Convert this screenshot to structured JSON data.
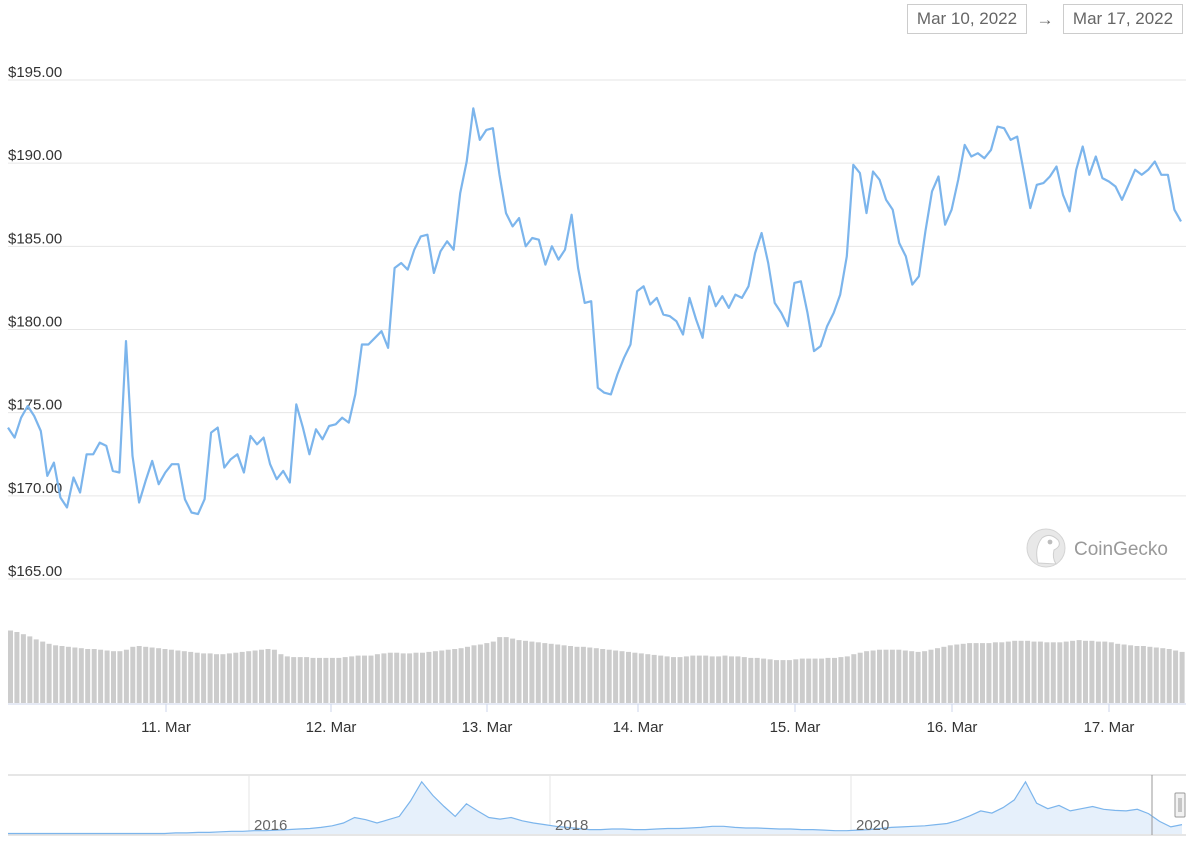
{
  "date_range": {
    "start": "Mar 10, 2022",
    "arrow": "→",
    "end": "Mar 17, 2022"
  },
  "watermark": {
    "text": "CoinGecko",
    "icon": "gecko-logo-icon"
  },
  "colors": {
    "price_line": "#7cb5ec",
    "volume_bar": "#cccccc",
    "navigator_fill": "#e6f0fb",
    "navigator_line": "#7cb5ec"
  },
  "navigator": {
    "labels": [
      "2016",
      "2018",
      "2020"
    ]
  },
  "chart_data": {
    "type": "line",
    "title": "",
    "xlabel": "",
    "ylabel": "",
    "x_ticks": [
      "11. Mar",
      "12. Mar",
      "13. Mar",
      "14. Mar",
      "15. Mar",
      "16. Mar",
      "17. Mar"
    ],
    "y_ticks": [
      "$165.00",
      "$170.00",
      "$175.00",
      "$180.00",
      "$185.00",
      "$190.00",
      "$195.00"
    ],
    "ylim": [
      165,
      195
    ],
    "x_range_days": [
      "2022-03-10T05:00",
      "2022-03-17T11:00"
    ],
    "grid": true,
    "price": [
      174.1,
      173.5,
      174.7,
      175.4,
      174.8,
      173.9,
      171.2,
      172.0,
      169.9,
      169.3,
      171.1,
      170.2,
      172.5,
      172.5,
      173.2,
      173.0,
      171.5,
      171.4,
      179.3,
      172.4,
      169.6,
      170.9,
      172.1,
      170.7,
      171.4,
      171.9,
      171.9,
      169.8,
      169.0,
      168.9,
      169.8,
      173.8,
      174.1,
      171.7,
      172.2,
      172.5,
      171.4,
      173.6,
      173.1,
      173.5,
      171.9,
      171.0,
      171.5,
      170.8,
      175.5,
      174.1,
      172.5,
      174.0,
      173.4,
      174.2,
      174.3,
      174.7,
      174.4,
      176.1,
      179.1,
      179.1,
      179.5,
      179.9,
      178.9,
      183.7,
      184.0,
      183.6,
      184.8,
      185.6,
      185.7,
      183.4,
      184.7,
      185.3,
      184.8,
      188.2,
      190.1,
      193.3,
      191.4,
      192.0,
      192.1,
      189.3,
      187.0,
      186.2,
      186.7,
      185.0,
      185.5,
      185.4,
      183.9,
      185.0,
      184.2,
      184.8,
      186.9,
      183.7,
      181.6,
      181.7,
      176.5,
      176.2,
      176.1,
      177.3,
      178.3,
      179.1,
      182.3,
      182.6,
      181.5,
      181.9,
      180.9,
      180.8,
      180.5,
      179.7,
      181.9,
      180.6,
      179.5,
      182.6,
      181.4,
      182.0,
      181.3,
      182.1,
      181.9,
      182.6,
      184.6,
      185.8,
      184.0,
      181.6,
      181.0,
      180.2,
      182.8,
      182.9,
      181.0,
      178.7,
      179.0,
      180.2,
      181.0,
      182.1,
      184.4,
      189.9,
      189.4,
      187.0,
      189.5,
      189.0,
      187.8,
      187.2,
      185.2,
      184.4,
      182.7,
      183.2,
      185.9,
      188.3,
      189.2,
      186.3,
      187.2,
      189.0,
      191.1,
      190.4,
      190.6,
      190.3,
      190.8,
      192.2,
      192.1,
      191.4,
      191.6,
      189.5,
      187.3,
      188.7,
      188.8,
      189.2,
      189.8,
      188.1,
      187.1,
      189.6,
      191.0,
      189.3,
      190.4,
      189.1,
      188.9,
      188.6,
      187.8,
      188.7,
      189.6,
      189.3,
      189.6,
      190.1,
      189.3,
      189.3,
      187.2,
      186.5
    ],
    "volume_relative": [
      0.98,
      0.96,
      0.93,
      0.9,
      0.86,
      0.83,
      0.8,
      0.78,
      0.77,
      0.76,
      0.75,
      0.74,
      0.73,
      0.73,
      0.72,
      0.71,
      0.7,
      0.7,
      0.72,
      0.76,
      0.77,
      0.76,
      0.75,
      0.74,
      0.73,
      0.72,
      0.71,
      0.7,
      0.69,
      0.68,
      0.67,
      0.67,
      0.66,
      0.66,
      0.67,
      0.68,
      0.69,
      0.7,
      0.71,
      0.72,
      0.73,
      0.72,
      0.66,
      0.63,
      0.62,
      0.62,
      0.62,
      0.61,
      0.61,
      0.61,
      0.61,
      0.61,
      0.62,
      0.63,
      0.64,
      0.64,
      0.64,
      0.66,
      0.67,
      0.68,
      0.68,
      0.67,
      0.67,
      0.68,
      0.68,
      0.69,
      0.7,
      0.71,
      0.72,
      0.73,
      0.74,
      0.76,
      0.78,
      0.79,
      0.81,
      0.83,
      0.89,
      0.89,
      0.87,
      0.85,
      0.84,
      0.83,
      0.82,
      0.81,
      0.8,
      0.79,
      0.78,
      0.77,
      0.76,
      0.76,
      0.75,
      0.74,
      0.73,
      0.72,
      0.71,
      0.7,
      0.69,
      0.68,
      0.67,
      0.66,
      0.65,
      0.64,
      0.63,
      0.62,
      0.62,
      0.63,
      0.64,
      0.64,
      0.64,
      0.63,
      0.63,
      0.64,
      0.63,
      0.63,
      0.62,
      0.61,
      0.61,
      0.6,
      0.59,
      0.58,
      0.58,
      0.58,
      0.59,
      0.6,
      0.6,
      0.6,
      0.6,
      0.61,
      0.61,
      0.62,
      0.63,
      0.66,
      0.68,
      0.7,
      0.71,
      0.72,
      0.72,
      0.72,
      0.72,
      0.71,
      0.7,
      0.69,
      0.7,
      0.72,
      0.74,
      0.76,
      0.78,
      0.79,
      0.8,
      0.81,
      0.81,
      0.81,
      0.81,
      0.82,
      0.82,
      0.83,
      0.84,
      0.84,
      0.84,
      0.83,
      0.83,
      0.82,
      0.82,
      0.82,
      0.83,
      0.84,
      0.85,
      0.84,
      0.84,
      0.83,
      0.83,
      0.82,
      0.8,
      0.79,
      0.78,
      0.77,
      0.77,
      0.76,
      0.75,
      0.74,
      0.73,
      0.71,
      0.69
    ],
    "navigator_series_relative": [
      0.01,
      0.01,
      0.01,
      0.01,
      0.01,
      0.01,
      0.01,
      0.01,
      0.01,
      0.01,
      0.01,
      0.01,
      0.01,
      0.01,
      0.01,
      0.02,
      0.02,
      0.03,
      0.03,
      0.04,
      0.05,
      0.05,
      0.06,
      0.06,
      0.07,
      0.08,
      0.09,
      0.1,
      0.12,
      0.15,
      0.2,
      0.3,
      0.26,
      0.2,
      0.26,
      0.32,
      0.6,
      0.95,
      0.7,
      0.5,
      0.32,
      0.55,
      0.42,
      0.3,
      0.27,
      0.3,
      0.24,
      0.2,
      0.17,
      0.14,
      0.12,
      0.1,
      0.08,
      0.08,
      0.09,
      0.09,
      0.08,
      0.08,
      0.09,
      0.1,
      0.1,
      0.11,
      0.12,
      0.14,
      0.14,
      0.12,
      0.11,
      0.11,
      0.1,
      0.09,
      0.09,
      0.08,
      0.08,
      0.07,
      0.06,
      0.06,
      0.07,
      0.08,
      0.1,
      0.12,
      0.13,
      0.14,
      0.15,
      0.17,
      0.19,
      0.25,
      0.33,
      0.42,
      0.38,
      0.48,
      0.62,
      0.95,
      0.56,
      0.46,
      0.52,
      0.42,
      0.46,
      0.5,
      0.45,
      0.43,
      0.42,
      0.45,
      0.37,
      0.23,
      0.13,
      0.17
    ]
  }
}
